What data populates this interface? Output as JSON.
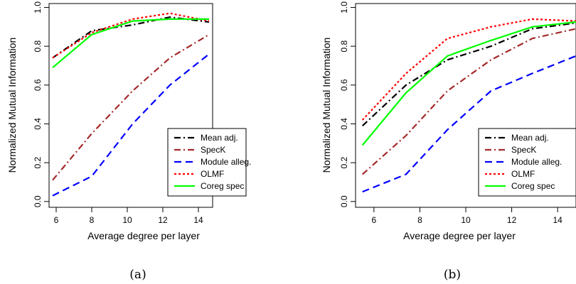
{
  "chart_data": [
    {
      "type": "line",
      "caption": "(a)",
      "xlabel": "Average degree per layer",
      "ylabel": "Normalized Mutual Information",
      "xlim": [
        5.6,
        14.8
      ],
      "ylim": [
        -0.03,
        1.02
      ],
      "xticks": [
        "6",
        "8",
        "10",
        "12",
        "14"
      ],
      "yticks": [
        "0.0",
        "0.2",
        "0.4",
        "0.6",
        "0.8",
        "1.0"
      ],
      "grid": false,
      "legend_position": "bottom-right",
      "x": [
        5.8,
        8.0,
        10.3,
        12.4,
        14.6
      ],
      "series": [
        {
          "name": "Mean adj.",
          "color": "#000000",
          "dash": "dashdot",
          "values": [
            0.74,
            0.88,
            0.91,
            0.95,
            0.925
          ]
        },
        {
          "name": "SpecK",
          "color": "#a52a2a",
          "dash": "dashdot",
          "values": [
            0.11,
            0.35,
            0.57,
            0.74,
            0.86
          ]
        },
        {
          "name": "Module alleg.",
          "color": "#0000ff",
          "dash": "dashed",
          "values": [
            0.03,
            0.13,
            0.4,
            0.6,
            0.76
          ]
        },
        {
          "name": "OLMF",
          "color": "#ff0000",
          "dash": "dotted",
          "values": [
            0.74,
            0.87,
            0.94,
            0.97,
            0.93
          ]
        },
        {
          "name": "Coreg spec",
          "color": "#00ff00",
          "dash": "solid",
          "values": [
            0.69,
            0.86,
            0.93,
            0.94,
            0.94
          ]
        }
      ]
    },
    {
      "type": "line",
      "caption": "(b)",
      "xlabel": "Average degree per layer",
      "ylabel": "Normalized Mutual Information",
      "xlim": [
        5.2,
        14.8
      ],
      "ylim": [
        -0.03,
        1.02
      ],
      "xticks": [
        "6",
        "8",
        "10",
        "12",
        "14"
      ],
      "yticks": [
        "0.0",
        "0.2",
        "0.4",
        "0.6",
        "0.8",
        "1.0"
      ],
      "grid": false,
      "legend_position": "bottom-right",
      "x": [
        5.5,
        7.4,
        9.2,
        11.1,
        12.9,
        14.8
      ],
      "series": [
        {
          "name": "Mean adj.",
          "color": "#000000",
          "dash": "dashdot",
          "values": [
            0.39,
            0.6,
            0.73,
            0.8,
            0.89,
            0.92
          ]
        },
        {
          "name": "SpecK",
          "color": "#a52a2a",
          "dash": "dashdot",
          "values": [
            0.14,
            0.34,
            0.57,
            0.73,
            0.84,
            0.89
          ]
        },
        {
          "name": "Module alleg.",
          "color": "#0000ff",
          "dash": "dashed",
          "values": [
            0.05,
            0.14,
            0.37,
            0.57,
            0.66,
            0.75
          ]
        },
        {
          "name": "OLMF",
          "color": "#ff0000",
          "dash": "dotted",
          "values": [
            0.42,
            0.66,
            0.84,
            0.9,
            0.94,
            0.93
          ]
        },
        {
          "name": "Coreg spec",
          "color": "#00ff00",
          "dash": "solid",
          "values": [
            0.29,
            0.56,
            0.75,
            0.83,
            0.9,
            0.925
          ]
        }
      ]
    }
  ]
}
